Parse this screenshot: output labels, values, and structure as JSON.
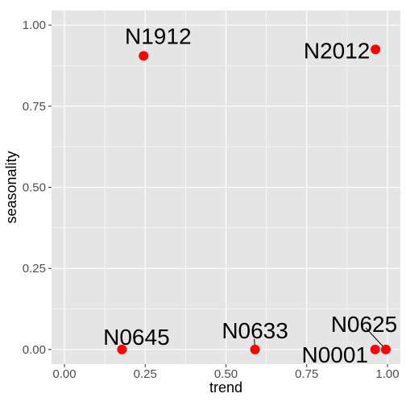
{
  "chart_data": {
    "type": "scatter",
    "xlabel": "trend",
    "ylabel": "seasonality",
    "xlim": [
      -0.04,
      1.04
    ],
    "ylim": [
      -0.045,
      1.045
    ],
    "x_ticks": [
      {
        "value": 0.0,
        "label": "0.00"
      },
      {
        "value": 0.25,
        "label": "0.25"
      },
      {
        "value": 0.5,
        "label": "0.50"
      },
      {
        "value": 0.75,
        "label": "0.75"
      },
      {
        "value": 1.0,
        "label": "1.00"
      }
    ],
    "y_ticks": [
      {
        "value": 0.0,
        "label": "0.00"
      },
      {
        "value": 0.25,
        "label": "0.25"
      },
      {
        "value": 0.5,
        "label": "0.50"
      },
      {
        "value": 0.75,
        "label": "0.75"
      },
      {
        "value": 1.0,
        "label": "1.00"
      }
    ],
    "grid": true,
    "point_color": "#ff0000",
    "panel_color": "#e5e5e5",
    "grid_color": "#ffffff",
    "points": [
      {
        "label": "N1912",
        "x": 0.245,
        "y": 0.905
      },
      {
        "label": "N2012",
        "x": 0.963,
        "y": 0.925
      },
      {
        "label": "N0645",
        "x": 0.178,
        "y": 0.0
      },
      {
        "label": "N0633",
        "x": 0.59,
        "y": 0.0
      },
      {
        "label": "N0625",
        "x": 0.995,
        "y": 0.0
      },
      {
        "label": "N0001",
        "x": 0.962,
        "y": 0.0
      }
    ]
  }
}
